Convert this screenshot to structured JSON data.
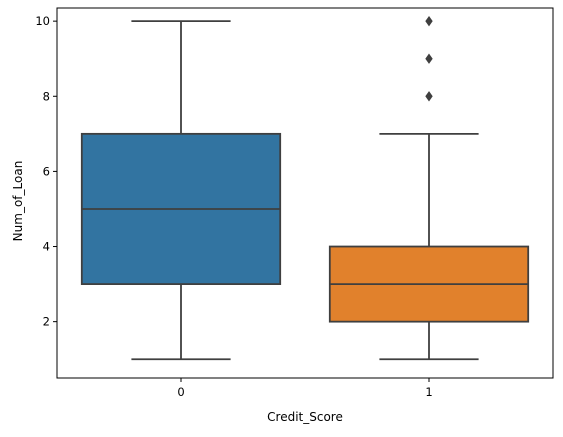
{
  "chart_data": {
    "type": "boxplot",
    "title": "",
    "xlabel": "Credit_Score",
    "ylabel": "Num_of_Loan",
    "categories": [
      "0",
      "1"
    ],
    "ylim": [
      0.5,
      10.35
    ],
    "yticks": [
      2,
      4,
      6,
      8,
      10
    ],
    "grid": false,
    "boxes": [
      {
        "category": "0",
        "color": "#3274a1",
        "whisker_low": 1,
        "q1": 3,
        "median": 5,
        "q3": 7,
        "whisker_high": 10,
        "outliers": []
      },
      {
        "category": "1",
        "color": "#e1812c",
        "whisker_low": 1,
        "q1": 2,
        "median": 3,
        "q3": 4,
        "whisker_high": 7,
        "outliers": [
          8,
          9,
          10
        ]
      }
    ],
    "line_color": "#3f3f3f"
  }
}
